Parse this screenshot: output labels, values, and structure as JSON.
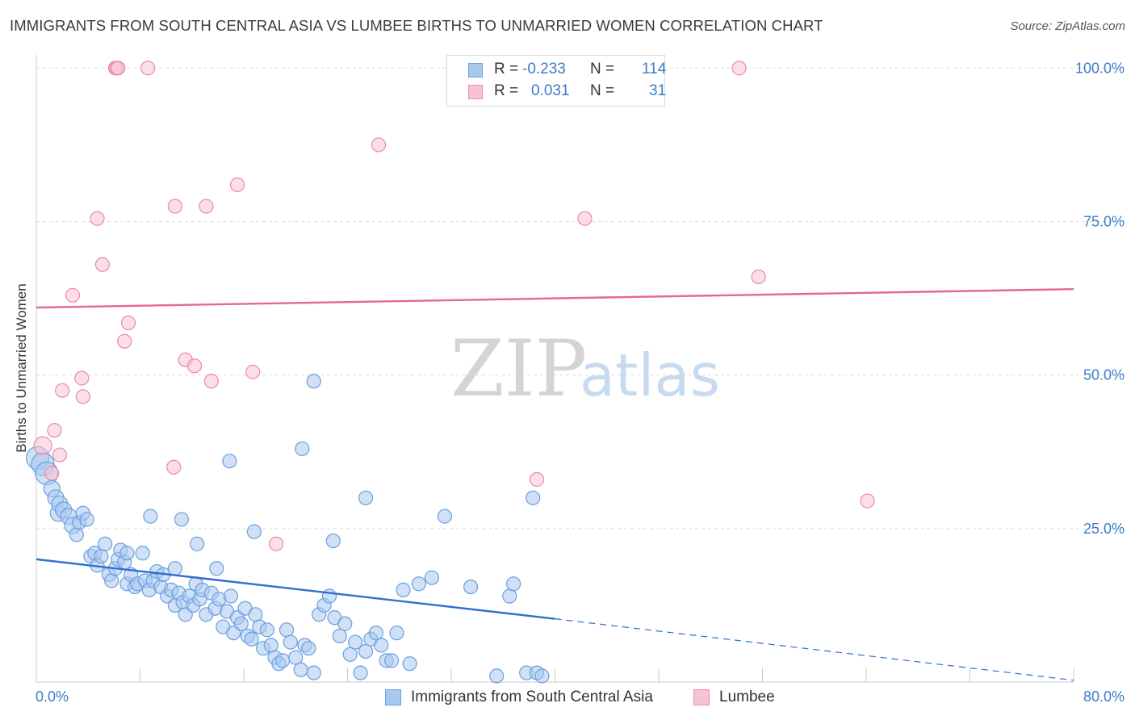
{
  "header": {
    "title": "IMMIGRANTS FROM SOUTH CENTRAL ASIA VS LUMBEE BIRTHS TO UNMARRIED WOMEN CORRELATION CHART",
    "source": "Source: ZipAtlas.com"
  },
  "legend": {
    "rows": [
      {
        "r_label": "R =",
        "r_value": "-0.233",
        "n_label": "N =",
        "n_value": "114"
      },
      {
        "r_label": "R =",
        "r_value": "0.031",
        "n_label": "N =",
        "n_value": "31"
      }
    ]
  },
  "watermark": {
    "zip": "ZIP",
    "atlas": "atlas"
  },
  "colors": {
    "blue_fill": "#a9c8ef",
    "blue_stroke": "#6a9fe0",
    "blue_line": "#2f6fd0",
    "pink_fill": "#f7c3d3",
    "pink_stroke": "#ec8aa8",
    "pink_line": "#e5688f",
    "tick_label": "#3d7cc9",
    "grid": "#dcdcdc"
  },
  "chart_data": {
    "type": "scatter",
    "title": "IMMIGRANTS FROM SOUTH CENTRAL ASIA VS LUMBEE BIRTHS TO UNMARRIED WOMEN CORRELATION CHART",
    "xlabel": "",
    "ylabel": "Births to Unmarried Women",
    "xlim": [
      0,
      80
    ],
    "ylim": [
      0,
      100
    ],
    "x_tick_labels": [
      "0.0%",
      "80.0%"
    ],
    "y_ticks": [
      25,
      50,
      75,
      100
    ],
    "y_tick_labels": [
      "25.0%",
      "50.0%",
      "75.0%",
      "100.0%"
    ],
    "grid": true,
    "legend_position": "top-center",
    "series": [
      {
        "name": "Immigrants from South Central Asia",
        "color": "#a9c8ef",
        "r": -0.233,
        "n": 114,
        "trend": {
          "x": [
            0,
            40
          ],
          "y": [
            20.0,
            10.3
          ],
          "dashed_to": [
            80,
            0.3
          ]
        },
        "points": [
          [
            0.1,
            36.5
          ],
          [
            0.5,
            35.5
          ],
          [
            0.8,
            34.0
          ],
          [
            1.2,
            31.5
          ],
          [
            1.5,
            30.0
          ],
          [
            1.7,
            27.5
          ],
          [
            1.8,
            29.0
          ],
          [
            2.1,
            28.0
          ],
          [
            2.5,
            27.0
          ],
          [
            2.8,
            25.5
          ],
          [
            3.1,
            24.0
          ],
          [
            3.3,
            26.0
          ],
          [
            3.6,
            27.5
          ],
          [
            3.9,
            26.5
          ],
          [
            4.2,
            20.5
          ],
          [
            4.5,
            21.0
          ],
          [
            4.7,
            19.0
          ],
          [
            5.0,
            20.5
          ],
          [
            5.3,
            22.5
          ],
          [
            5.6,
            17.5
          ],
          [
            5.8,
            16.5
          ],
          [
            6.1,
            18.5
          ],
          [
            6.3,
            20.0
          ],
          [
            6.5,
            21.5
          ],
          [
            6.8,
            19.5
          ],
          [
            7.0,
            16.0
          ],
          [
            7.3,
            17.5
          ],
          [
            7.6,
            15.5
          ],
          [
            7.8,
            16.0
          ],
          [
            8.2,
            21.0
          ],
          [
            8.4,
            16.5
          ],
          [
            8.7,
            15.0
          ],
          [
            9.0,
            16.5
          ],
          [
            9.3,
            18.0
          ],
          [
            9.6,
            15.5
          ],
          [
            9.8,
            17.5
          ],
          [
            10.1,
            14.0
          ],
          [
            10.4,
            15.0
          ],
          [
            10.7,
            12.5
          ],
          [
            11.0,
            14.5
          ],
          [
            11.3,
            13.0
          ],
          [
            11.5,
            11.0
          ],
          [
            11.8,
            14.0
          ],
          [
            12.1,
            12.5
          ],
          [
            12.3,
            16.0
          ],
          [
            12.6,
            13.5
          ],
          [
            12.8,
            15.0
          ],
          [
            13.1,
            11.0
          ],
          [
            13.5,
            14.5
          ],
          [
            13.8,
            12.0
          ],
          [
            14.1,
            13.5
          ],
          [
            14.4,
            9.0
          ],
          [
            14.7,
            11.5
          ],
          [
            15.0,
            14.0
          ],
          [
            15.2,
            8.0
          ],
          [
            15.5,
            10.5
          ],
          [
            15.8,
            9.5
          ],
          [
            16.1,
            12.0
          ],
          [
            16.3,
            7.5
          ],
          [
            16.6,
            7.0
          ],
          [
            16.9,
            11.0
          ],
          [
            17.2,
            9.0
          ],
          [
            17.5,
            5.5
          ],
          [
            17.8,
            8.5
          ],
          [
            18.1,
            6.0
          ],
          [
            18.4,
            4.0
          ],
          [
            18.7,
            3.0
          ],
          [
            19.0,
            3.5
          ],
          [
            19.3,
            8.5
          ],
          [
            19.6,
            6.5
          ],
          [
            20.0,
            4.0
          ],
          [
            20.4,
            2.0
          ],
          [
            20.7,
            6.0
          ],
          [
            21.0,
            5.5
          ],
          [
            21.4,
            1.5
          ],
          [
            21.8,
            11.0
          ],
          [
            22.2,
            12.5
          ],
          [
            22.6,
            14.0
          ],
          [
            23.0,
            10.5
          ],
          [
            23.4,
            7.5
          ],
          [
            23.8,
            9.5
          ],
          [
            24.2,
            4.5
          ],
          [
            24.6,
            6.5
          ],
          [
            25.0,
            1.5
          ],
          [
            25.4,
            5.0
          ],
          [
            25.8,
            7.0
          ],
          [
            26.2,
            8.0
          ],
          [
            26.6,
            6.0
          ],
          [
            27.0,
            3.5
          ],
          [
            27.4,
            3.5
          ],
          [
            27.8,
            8.0
          ],
          [
            28.3,
            15.0
          ],
          [
            28.8,
            3.0
          ],
          [
            29.5,
            16.0
          ],
          [
            30.5,
            17.0
          ],
          [
            31.5,
            27.0
          ],
          [
            33.5,
            15.5
          ],
          [
            35.5,
            1.0
          ],
          [
            36.5,
            14.0
          ],
          [
            36.8,
            16.0
          ],
          [
            38.3,
            30.0
          ],
          [
            37.8,
            1.5
          ],
          [
            38.6,
            1.5
          ],
          [
            39.0,
            1.0
          ],
          [
            7.0,
            21.0
          ],
          [
            11.2,
            26.5
          ],
          [
            12.4,
            22.5
          ],
          [
            8.8,
            27.0
          ],
          [
            14.9,
            36.0
          ],
          [
            20.5,
            38.0
          ],
          [
            21.4,
            49.0
          ],
          [
            16.8,
            24.5
          ],
          [
            22.9,
            23.0
          ],
          [
            25.4,
            30.0
          ],
          [
            10.7,
            18.5
          ],
          [
            13.9,
            18.5
          ]
        ]
      },
      {
        "name": "Lumbee",
        "color": "#f7c3d3",
        "r": 0.031,
        "n": 31,
        "trend": {
          "x": [
            0,
            80
          ],
          "y": [
            61.0,
            64.0
          ]
        },
        "points": [
          [
            0.5,
            38.5
          ],
          [
            1.2,
            34.0
          ],
          [
            1.4,
            41.0
          ],
          [
            1.8,
            37.0
          ],
          [
            2.0,
            47.5
          ],
          [
            2.8,
            63.0
          ],
          [
            3.5,
            49.5
          ],
          [
            3.6,
            46.5
          ],
          [
            4.7,
            75.5
          ],
          [
            5.1,
            68.0
          ],
          [
            6.1,
            100
          ],
          [
            6.2,
            100
          ],
          [
            6.3,
            100
          ],
          [
            6.8,
            55.5
          ],
          [
            7.1,
            58.5
          ],
          [
            8.6,
            100
          ],
          [
            10.6,
            35.0
          ],
          [
            10.7,
            77.5
          ],
          [
            11.5,
            52.5
          ],
          [
            12.2,
            51.5
          ],
          [
            13.1,
            77.5
          ],
          [
            13.5,
            49.0
          ],
          [
            15.5,
            81.0
          ],
          [
            16.7,
            50.5
          ],
          [
            18.5,
            22.5
          ],
          [
            26.4,
            87.5
          ],
          [
            38.6,
            33.0
          ],
          [
            42.3,
            75.5
          ],
          [
            54.2,
            100
          ],
          [
            55.7,
            66.0
          ],
          [
            64.1,
            29.5
          ]
        ]
      }
    ]
  }
}
